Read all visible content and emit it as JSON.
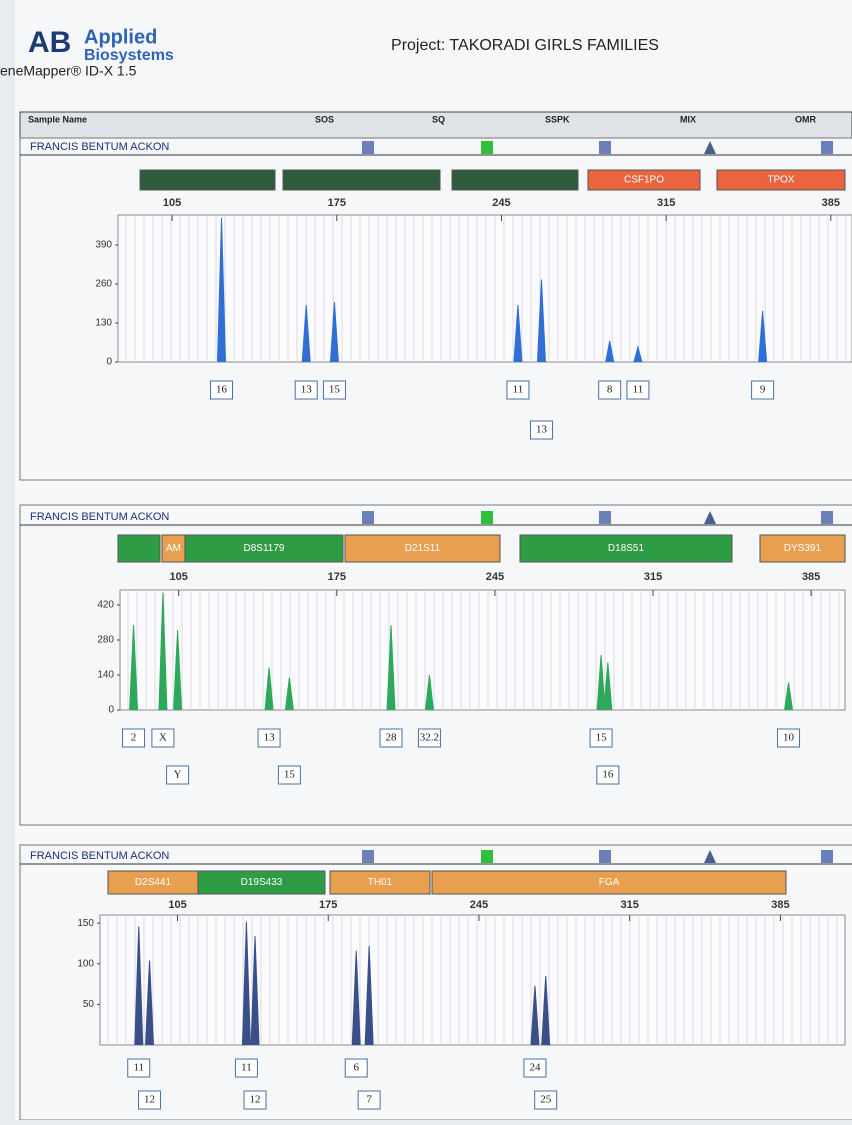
{
  "header": {
    "logo_top": "Applied",
    "logo_bottom": "Biosystems",
    "software": "eneMapper® ID-X 1.5",
    "project": "Project: TAKORADI GIRLS FAMILIES"
  },
  "columns": [
    "Sample Name",
    "SOS",
    "SQ",
    "SSPK",
    "MIX",
    "OMR"
  ],
  "panels": [
    {
      "sample": "FRANCIS BENTUM ACKON",
      "markers": [
        {
          "label": null,
          "color": "#2f5b3c"
        },
        {
          "label": null,
          "color": "#2f5b3c"
        },
        {
          "label": null,
          "color": "#2f5b3c"
        },
        {
          "label": "CSF1PO",
          "color": "#e8653f"
        },
        {
          "label": "TPOX",
          "color": "#e8653f"
        }
      ],
      "color": "#2f6fd6",
      "xlim": [
        82,
        394
      ],
      "xticks": [
        105,
        175,
        245,
        315,
        385
      ],
      "ylim": [
        0,
        490
      ],
      "yticks": [
        0,
        130,
        260,
        390
      ],
      "peaks": [
        {
          "x": 126,
          "height": 480,
          "allele": "16"
        },
        {
          "x": 162,
          "height": 190,
          "allele": "13"
        },
        {
          "x": 174,
          "height": 200,
          "allele": "15"
        },
        {
          "x": 252,
          "height": 190,
          "allele": "11"
        },
        {
          "x": 262,
          "height": 275,
          "allele": "13"
        },
        {
          "x": 291,
          "height": 70,
          "allele": "8"
        },
        {
          "x": 303,
          "height": 50,
          "allele": "11"
        },
        {
          "x": 356,
          "height": 170,
          "allele": "9"
        }
      ]
    },
    {
      "sample": "FRANCIS BENTUM ACKON",
      "markers": [
        {
          "label": null,
          "color": "#2e9c45"
        },
        {
          "label": "AM",
          "color": "#e8a050"
        },
        {
          "label": "D8S1179",
          "color": "#2e9c45"
        },
        {
          "label": "D21S11",
          "color": "#e8a050"
        },
        {
          "label": "D18S51",
          "color": "#2e9c45"
        },
        {
          "label": "DYS391",
          "color": "#e8a050"
        }
      ],
      "color": "#2ea85a",
      "xlim": [
        79,
        400
      ],
      "xticks": [
        105,
        175,
        245,
        315,
        385
      ],
      "ylim": [
        0,
        480
      ],
      "yticks": [
        0,
        140,
        280,
        420
      ],
      "peaks": [
        {
          "x": 85,
          "height": 340,
          "allele": "2"
        },
        {
          "x": 98,
          "height": 470,
          "allele": "X"
        },
        {
          "x": 104.5,
          "height": 320,
          "allele": "Y"
        },
        {
          "x": 145,
          "height": 170,
          "allele": "13"
        },
        {
          "x": 154,
          "height": 130,
          "allele": "15"
        },
        {
          "x": 199,
          "height": 340,
          "allele": "28"
        },
        {
          "x": 216,
          "height": 140,
          "allele": "32.2"
        },
        {
          "x": 292,
          "height": 220,
          "allele": "15"
        },
        {
          "x": 295,
          "height": 190,
          "allele": "16"
        },
        {
          "x": 375,
          "height": 110,
          "allele": "10"
        }
      ]
    },
    {
      "sample": "FRANCIS BENTUM ACKON",
      "markers": [
        {
          "label": "D2S441",
          "color": "#e8a050"
        },
        {
          "label": "D19S433",
          "color": "#2e9c45"
        },
        {
          "label": "TH01",
          "color": "#e8a050"
        },
        {
          "label": "FGA",
          "color": "#e8a050"
        }
      ],
      "color": "#3a4f8a",
      "xlim": [
        69,
        415
      ],
      "xticks": [
        105,
        175,
        245,
        315,
        385
      ],
      "ylim": [
        0,
        160
      ],
      "yticks": [
        50,
        100,
        150
      ],
      "peaks": [
        {
          "x": 87,
          "height": 146,
          "allele": "11"
        },
        {
          "x": 92,
          "height": 104,
          "allele": "12"
        },
        {
          "x": 137,
          "height": 152,
          "allele": "11"
        },
        {
          "x": 141,
          "height": 134,
          "allele": "12"
        },
        {
          "x": 188,
          "height": 116,
          "allele": "6"
        },
        {
          "x": 194,
          "height": 122,
          "allele": "7"
        },
        {
          "x": 271,
          "height": 73,
          "allele": "24"
        },
        {
          "x": 276,
          "height": 85,
          "allele": "25"
        }
      ]
    }
  ]
}
